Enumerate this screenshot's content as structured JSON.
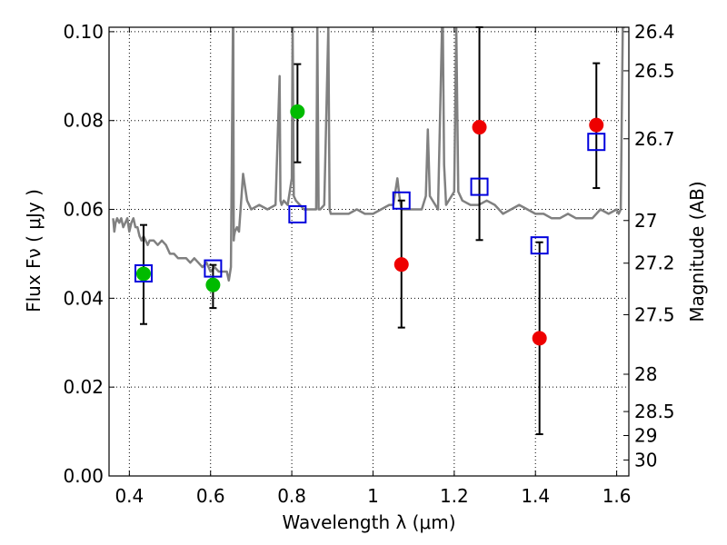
{
  "chart_data": {
    "type": "scatter",
    "title": "",
    "xlabel": "Wavelength  λ (μm)",
    "ylabel": "Flux  Fν  ( μJy )",
    "ylabel_right": "Magnitude (AB)",
    "xlim": [
      0.35,
      1.63
    ],
    "ylim": [
      0.0,
      0.101
    ],
    "grid": true,
    "x_ticks": [
      0.4,
      0.6,
      0.8,
      1.0,
      1.2,
      1.4,
      1.6
    ],
    "x_tick_labels": [
      "0.4",
      "0.6",
      "0.8",
      "1",
      "1.2",
      "1.4",
      "1.6"
    ],
    "y_ticks": [
      0.0,
      0.02,
      0.04,
      0.06,
      0.08,
      0.1
    ],
    "y_tick_labels": [
      "0.00",
      "0.02",
      "0.04",
      "0.06",
      "0.08",
      "0.10"
    ],
    "mag_ticks": [
      {
        "label": "26.4",
        "flux": 0.1
      },
      {
        "label": "26.5",
        "flux": 0.0912
      },
      {
        "label": "26.7",
        "flux": 0.0759
      },
      {
        "label": "27",
        "flux": 0.0575
      },
      {
        "label": "27.2",
        "flux": 0.0479
      },
      {
        "label": "27.5",
        "flux": 0.0363
      },
      {
        "label": "28",
        "flux": 0.0229
      },
      {
        "label": "28.5",
        "flux": 0.0145
      },
      {
        "label": "29",
        "flux": 0.0091
      },
      {
        "label": "30",
        "flux": 0.0036
      }
    ],
    "series": [
      {
        "name": "model spectrum",
        "kind": "line",
        "color": "#808080",
        "x": [
          0.36,
          0.363,
          0.366,
          0.37,
          0.375,
          0.38,
          0.385,
          0.39,
          0.395,
          0.4,
          0.405,
          0.41,
          0.415,
          0.42,
          0.425,
          0.43,
          0.435,
          0.44,
          0.445,
          0.45,
          0.46,
          0.47,
          0.48,
          0.49,
          0.5,
          0.51,
          0.52,
          0.53,
          0.54,
          0.55,
          0.56,
          0.57,
          0.58,
          0.59,
          0.6,
          0.61,
          0.62,
          0.63,
          0.64,
          0.645,
          0.65,
          0.655,
          0.656,
          0.657,
          0.658,
          0.66,
          0.665,
          0.67,
          0.68,
          0.69,
          0.7,
          0.72,
          0.74,
          0.76,
          0.77,
          0.772,
          0.775,
          0.78,
          0.79,
          0.8,
          0.802,
          0.805,
          0.81,
          0.82,
          0.83,
          0.84,
          0.85,
          0.86,
          0.863,
          0.866,
          0.87,
          0.88,
          0.89,
          0.893,
          0.896,
          0.9,
          0.92,
          0.94,
          0.96,
          0.98,
          1.0,
          1.02,
          1.04,
          1.05,
          1.06,
          1.065,
          1.07,
          1.08,
          1.1,
          1.12,
          1.13,
          1.135,
          1.14,
          1.16,
          1.17,
          1.172,
          1.175,
          1.18,
          1.2,
          1.205,
          1.21,
          1.22,
          1.24,
          1.26,
          1.28,
          1.3,
          1.32,
          1.34,
          1.36,
          1.38,
          1.4,
          1.42,
          1.44,
          1.46,
          1.48,
          1.5,
          1.52,
          1.54,
          1.56,
          1.58,
          1.6,
          1.605,
          1.61,
          1.615,
          1.62
        ],
        "y": [
          0.058,
          0.055,
          0.057,
          0.058,
          0.057,
          0.058,
          0.056,
          0.057,
          0.058,
          0.055,
          0.057,
          0.058,
          0.056,
          0.056,
          0.054,
          0.053,
          0.054,
          0.053,
          0.052,
          0.053,
          0.053,
          0.052,
          0.053,
          0.052,
          0.05,
          0.05,
          0.049,
          0.049,
          0.049,
          0.048,
          0.049,
          0.048,
          0.047,
          0.048,
          0.046,
          0.047,
          0.046,
          0.046,
          0.046,
          0.044,
          0.047,
          0.101,
          0.101,
          0.053,
          0.054,
          0.055,
          0.056,
          0.055,
          0.068,
          0.062,
          0.06,
          0.061,
          0.06,
          0.061,
          0.09,
          0.062,
          0.061,
          0.062,
          0.061,
          0.067,
          0.101,
          0.063,
          0.062,
          0.061,
          0.06,
          0.06,
          0.06,
          0.06,
          0.101,
          0.06,
          0.06,
          0.061,
          0.101,
          0.06,
          0.059,
          0.059,
          0.059,
          0.059,
          0.06,
          0.059,
          0.059,
          0.06,
          0.061,
          0.061,
          0.067,
          0.063,
          0.06,
          0.06,
          0.06,
          0.06,
          0.063,
          0.078,
          0.063,
          0.06,
          0.101,
          0.101,
          0.07,
          0.061,
          0.064,
          0.101,
          0.064,
          0.062,
          0.061,
          0.061,
          0.062,
          0.061,
          0.059,
          0.06,
          0.061,
          0.06,
          0.059,
          0.059,
          0.058,
          0.058,
          0.059,
          0.058,
          0.058,
          0.058,
          0.06,
          0.059,
          0.06,
          0.059,
          0.06,
          0.101,
          0.101
        ]
      },
      {
        "name": "observed (green)",
        "kind": "points",
        "color": "#00bb00",
        "x": [
          0.435,
          0.606,
          0.814
        ],
        "y": [
          0.0455,
          0.043,
          0.082
        ]
      },
      {
        "name": "observed (red)",
        "kind": "points",
        "color": "#ee0000",
        "x": [
          1.07,
          1.262,
          1.41,
          1.55
        ],
        "y": [
          0.0476,
          0.0785,
          0.031,
          0.079
        ]
      },
      {
        "name": "model photometry",
        "kind": "squares",
        "color": "#0000dd",
        "x": [
          0.435,
          0.606,
          0.814,
          1.07,
          1.262,
          1.41,
          1.55
        ],
        "y": [
          0.0456,
          0.0467,
          0.0589,
          0.062,
          0.0651,
          0.0519,
          0.0752
        ]
      }
    ],
    "error_bars": [
      {
        "x": 0.435,
        "low": 0.0342,
        "high": 0.0565
      },
      {
        "x": 0.606,
        "low": 0.0378,
        "high": 0.0475
      },
      {
        "x": 0.814,
        "low": 0.0706,
        "high": 0.0927
      },
      {
        "x": 1.07,
        "low": 0.0334,
        "high": 0.062
      },
      {
        "x": 1.262,
        "low": 0.0531,
        "high": 0.1012
      },
      {
        "x": 1.41,
        "low": 0.0094,
        "high": 0.0526
      },
      {
        "x": 1.55,
        "low": 0.0648,
        "high": 0.0929
      }
    ]
  }
}
